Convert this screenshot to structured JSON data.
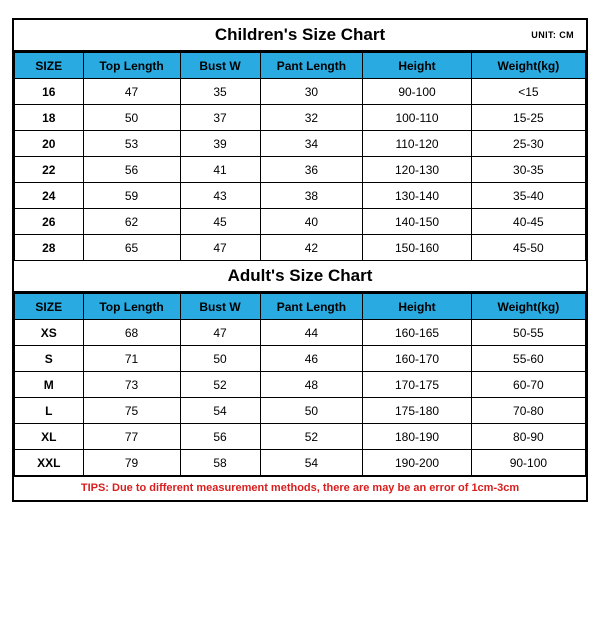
{
  "unit_label": "UNIT: CM",
  "header_bg": "#29abe2",
  "columns": [
    "SIZE",
    "Top Length",
    "Bust W",
    "Pant Length",
    "Height",
    "Weight(kg)"
  ],
  "children": {
    "title": "Children's Size Chart",
    "rows": [
      [
        "16",
        "47",
        "35",
        "30",
        "90-100",
        "<15"
      ],
      [
        "18",
        "50",
        "37",
        "32",
        "100-110",
        "15-25"
      ],
      [
        "20",
        "53",
        "39",
        "34",
        "110-120",
        "25-30"
      ],
      [
        "22",
        "56",
        "41",
        "36",
        "120-130",
        "30-35"
      ],
      [
        "24",
        "59",
        "43",
        "38",
        "130-140",
        "35-40"
      ],
      [
        "26",
        "62",
        "45",
        "40",
        "140-150",
        "40-45"
      ],
      [
        "28",
        "65",
        "47",
        "42",
        "150-160",
        "45-50"
      ]
    ]
  },
  "adult": {
    "title": "Adult's Size Chart",
    "rows": [
      [
        "XS",
        "68",
        "47",
        "44",
        "160-165",
        "50-55"
      ],
      [
        "S",
        "71",
        "50",
        "46",
        "160-170",
        "55-60"
      ],
      [
        "M",
        "73",
        "52",
        "48",
        "170-175",
        "60-70"
      ],
      [
        "L",
        "75",
        "54",
        "50",
        "175-180",
        "70-80"
      ],
      [
        "XL",
        "77",
        "56",
        "52",
        "180-190",
        "80-90"
      ],
      [
        "XXL",
        "79",
        "58",
        "54",
        "190-200",
        "90-100"
      ]
    ]
  },
  "tips": "TIPS: Due to different measurement methods, there are may be an error of 1cm-3cm"
}
